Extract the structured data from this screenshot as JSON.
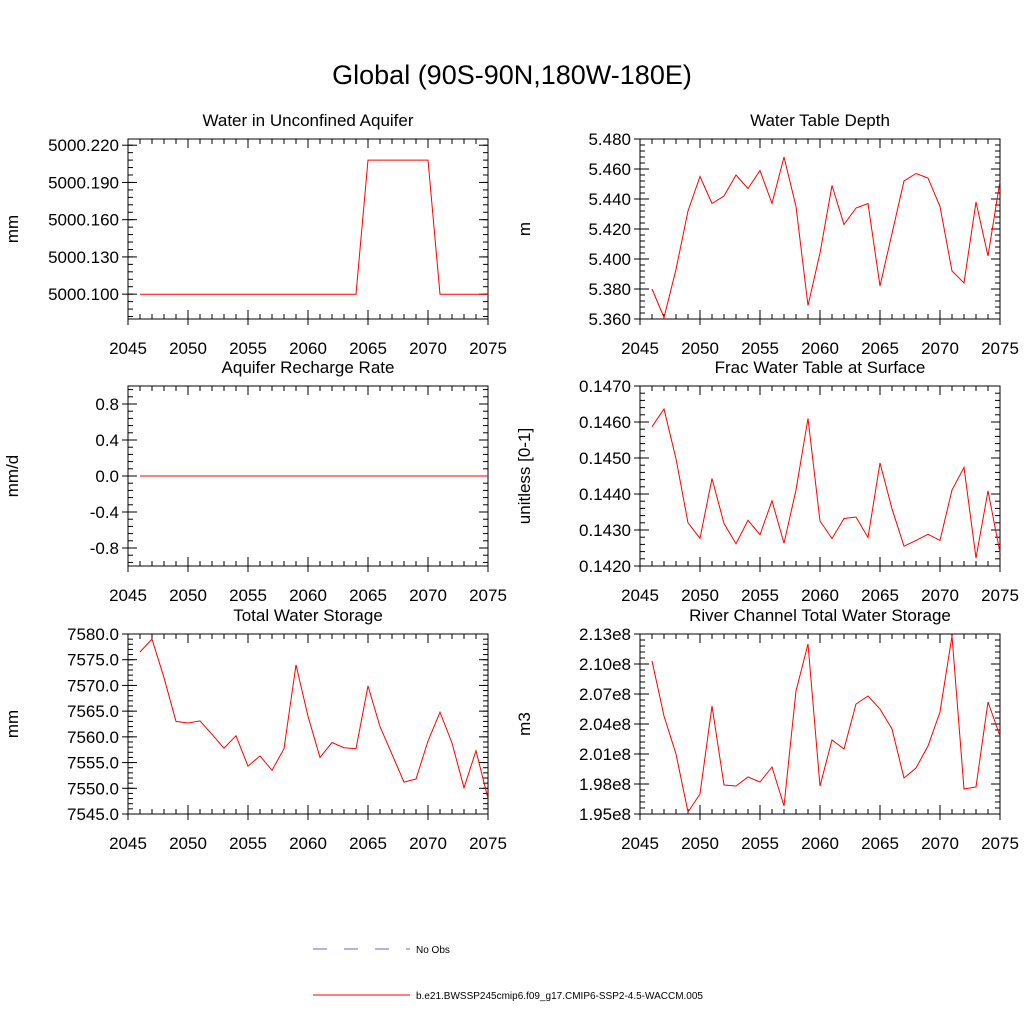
{
  "title": "Global (90S-90N,180W-180E)",
  "legend": {
    "entries": [
      {
        "label": "No Obs",
        "color": "#6b6bb5",
        "style": "dashed"
      },
      {
        "label": "b.e21.BWSSP245cmip6.f09_g17.CMIP6-SSP2-4.5-WACCM.005",
        "color": "#ff0000",
        "style": "solid"
      }
    ]
  },
  "series_color": "#ff0000",
  "chart_data": [
    {
      "type": "line",
      "title": "Water in Unconfined Aquifer",
      "ylabel": "mm",
      "xlim": [
        2045,
        2075
      ],
      "ylim": [
        5000.08,
        5000.225
      ],
      "xticks": [
        "2045",
        "2050",
        "2055",
        "2060",
        "2065",
        "2070",
        "2075"
      ],
      "yticks": [
        "5000.100",
        "5000.130",
        "5000.160",
        "5000.190",
        "5000.220"
      ],
      "x": [
        2046,
        2047,
        2048,
        2049,
        2050,
        2051,
        2052,
        2053,
        2054,
        2055,
        2056,
        2057,
        2058,
        2059,
        2060,
        2061,
        2062,
        2063,
        2064,
        2065,
        2066,
        2067,
        2068,
        2069,
        2070,
        2071,
        2072,
        2073,
        2074,
        2075
      ],
      "values": [
        5000.1,
        5000.1,
        5000.1,
        5000.1,
        5000.1,
        5000.1,
        5000.1,
        5000.1,
        5000.1,
        5000.1,
        5000.1,
        5000.1,
        5000.1,
        5000.1,
        5000.1,
        5000.1,
        5000.1,
        5000.1,
        5000.1,
        5000.208,
        5000.208,
        5000.208,
        5000.208,
        5000.208,
        5000.208,
        5000.1,
        5000.1,
        5000.1,
        5000.1,
        5000.1
      ]
    },
    {
      "type": "line",
      "title": "Water Table Depth",
      "ylabel": "m",
      "xlim": [
        2045,
        2075
      ],
      "ylim": [
        5.36,
        5.48
      ],
      "xticks": [
        "2045",
        "2050",
        "2055",
        "2060",
        "2065",
        "2070",
        "2075"
      ],
      "yticks": [
        "5.360",
        "5.380",
        "5.400",
        "5.420",
        "5.440",
        "5.460",
        "5.480"
      ],
      "x": [
        2046,
        2047,
        2048,
        2049,
        2050,
        2051,
        2052,
        2053,
        2054,
        2055,
        2056,
        2057,
        2058,
        2059,
        2060,
        2061,
        2062,
        2063,
        2064,
        2065,
        2066,
        2067,
        2068,
        2069,
        2070,
        2071,
        2072,
        2073,
        2074,
        2075
      ],
      "values": [
        5.38,
        5.361,
        5.393,
        5.432,
        5.455,
        5.437,
        5.442,
        5.456,
        5.447,
        5.459,
        5.437,
        5.468,
        5.435,
        5.369,
        5.404,
        5.449,
        5.423,
        5.434,
        5.437,
        5.382,
        5.417,
        5.452,
        5.457,
        5.454,
        5.435,
        5.392,
        5.384,
        5.438,
        5.402,
        5.452
      ]
    },
    {
      "type": "line",
      "title": "Aquifer Recharge Rate",
      "ylabel": "mm/d",
      "xlim": [
        2045,
        2075
      ],
      "ylim": [
        -1.0,
        1.0
      ],
      "xticks": [
        "2045",
        "2050",
        "2055",
        "2060",
        "2065",
        "2070",
        "2075"
      ],
      "yticks": [
        "-0.8",
        "-0.4",
        "0.0",
        "0.4",
        "0.8"
      ],
      "x": [
        2046,
        2047,
        2048,
        2049,
        2050,
        2051,
        2052,
        2053,
        2054,
        2055,
        2056,
        2057,
        2058,
        2059,
        2060,
        2061,
        2062,
        2063,
        2064,
        2065,
        2066,
        2067,
        2068,
        2069,
        2070,
        2071,
        2072,
        2073,
        2074,
        2075
      ],
      "values": [
        0,
        0,
        0,
        0,
        0,
        0,
        0,
        0,
        0,
        0,
        0,
        0,
        0,
        0,
        0,
        0,
        0,
        0,
        0,
        0,
        0,
        0,
        0,
        0,
        0,
        0,
        0,
        0,
        0,
        0
      ]
    },
    {
      "type": "line",
      "title": "Frac Water Table at Surface",
      "ylabel": "unitless [0-1]",
      "xlim": [
        2045,
        2075
      ],
      "ylim": [
        0.142,
        0.147
      ],
      "xticks": [
        "2045",
        "2050",
        "2055",
        "2060",
        "2065",
        "2070",
        "2075"
      ],
      "yticks": [
        "0.1420",
        "0.1430",
        "0.1440",
        "0.1450",
        "0.1460",
        "0.1470"
      ],
      "x": [
        2046,
        2047,
        2048,
        2049,
        2050,
        2051,
        2052,
        2053,
        2054,
        2055,
        2056,
        2057,
        2058,
        2059,
        2060,
        2061,
        2062,
        2063,
        2064,
        2065,
        2066,
        2067,
        2068,
        2069,
        2070,
        2071,
        2072,
        2073,
        2074,
        2075
      ],
      "values": [
        0.14587,
        0.14636,
        0.14498,
        0.1432,
        0.14277,
        0.14443,
        0.14318,
        0.14262,
        0.14327,
        0.14287,
        0.14381,
        0.14263,
        0.14411,
        0.1461,
        0.14325,
        0.14276,
        0.14332,
        0.14336,
        0.14279,
        0.14486,
        0.14359,
        0.14255,
        0.14271,
        0.14288,
        0.14271,
        0.14411,
        0.14474,
        0.14222,
        0.14409,
        0.14237
      ]
    },
    {
      "type": "line",
      "title": "Total Water Storage",
      "ylabel": "mm",
      "xlim": [
        2045,
        2075
      ],
      "ylim": [
        7545.0,
        7580.0
      ],
      "xticks": [
        "2045",
        "2050",
        "2055",
        "2060",
        "2065",
        "2070",
        "2075"
      ],
      "yticks": [
        "7545.0",
        "7550.0",
        "7555.0",
        "7560.0",
        "7565.0",
        "7570.0",
        "7575.0",
        "7580.0"
      ],
      "x": [
        2046,
        2047,
        2048,
        2049,
        2050,
        2051,
        2052,
        2053,
        2054,
        2055,
        2056,
        2057,
        2058,
        2059,
        2060,
        2061,
        2062,
        2063,
        2064,
        2065,
        2066,
        2067,
        2068,
        2069,
        2070,
        2071,
        2072,
        2073,
        2074,
        2075
      ],
      "values": [
        7576.5,
        7579.0,
        7571.5,
        7563.0,
        7562.7,
        7563.1,
        7560.5,
        7557.8,
        7560.2,
        7554.3,
        7556.3,
        7553.5,
        7557.7,
        7574.0,
        7564.0,
        7556.0,
        7558.9,
        7557.9,
        7557.7,
        7569.9,
        7562.0,
        7556.6,
        7551.2,
        7551.8,
        7559.2,
        7564.8,
        7558.8,
        7550.1,
        7557.3,
        7548.0
      ]
    },
    {
      "type": "line",
      "title": "River Channel Total Water Storage",
      "ylabel": "m3",
      "xlim": [
        2045,
        2075
      ],
      "ylim": [
        195000000.0,
        213000000.0
      ],
      "xticks": [
        "2045",
        "2050",
        "2055",
        "2060",
        "2065",
        "2070",
        "2075"
      ],
      "yticks": [
        "1.95e8",
        "1.98e8",
        "2.01e8",
        "2.04e8",
        "2.07e8",
        "2.10e8",
        "2.13e8"
      ],
      "x": [
        2046,
        2047,
        2048,
        2049,
        2050,
        2051,
        2052,
        2053,
        2054,
        2055,
        2056,
        2057,
        2058,
        2059,
        2060,
        2061,
        2062,
        2063,
        2064,
        2065,
        2066,
        2067,
        2068,
        2069,
        2070,
        2071,
        2072,
        2073,
        2074,
        2075
      ],
      "values": [
        210300000.0,
        204800000.0,
        201000000.0,
        195200000.0,
        197000000.0,
        205800000.0,
        197900000.0,
        197800000.0,
        198700000.0,
        198200000.0,
        199700000.0,
        195800000.0,
        207300000.0,
        212000000.0,
        197800000.0,
        202400000.0,
        201500000.0,
        206000000.0,
        206800000.0,
        205500000.0,
        203500000.0,
        198600000.0,
        199600000.0,
        201800000.0,
        205200000.0,
        212800000.0,
        197500000.0,
        197700000.0,
        206200000.0,
        202800000.0
      ]
    }
  ]
}
